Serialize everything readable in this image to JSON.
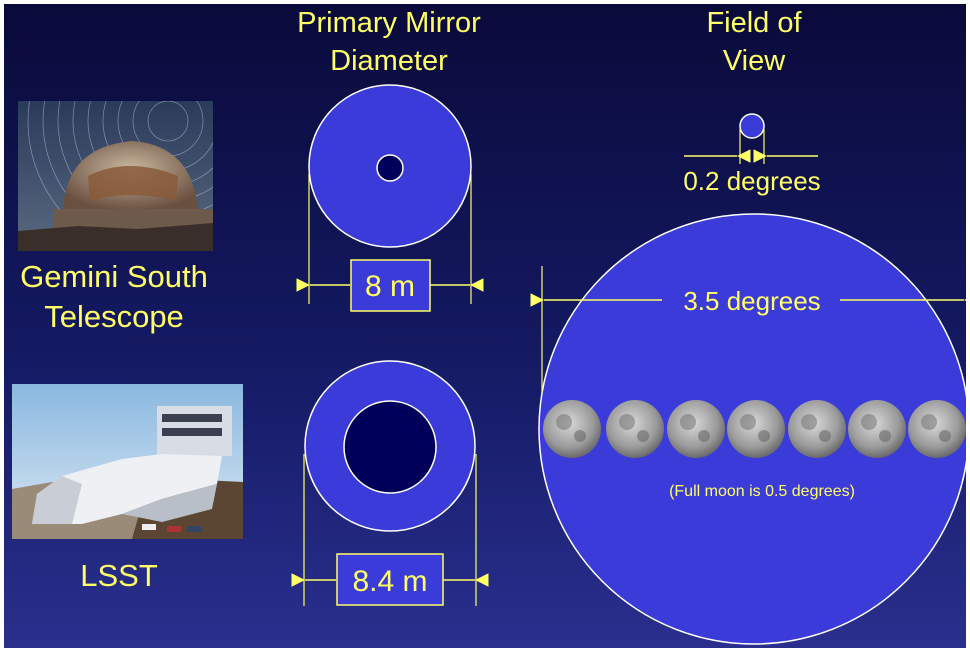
{
  "headings": {
    "mirror_line1": "Primary Mirror",
    "mirror_line2": "Diameter",
    "fov_line1": "Field of",
    "fov_line2": "View"
  },
  "telescopes": {
    "gemini_line1": "Gemini South",
    "gemini_line2": "Telescope",
    "lsst": "LSST"
  },
  "mirror": {
    "gemini_diameter": "8 m",
    "lsst_diameter": "8.4 m"
  },
  "fov": {
    "gemini": "0.2 degrees",
    "lsst": "3.5 degrees",
    "moon_note": "(Full moon is 0.5 degrees)"
  },
  "colors": {
    "text": "#ffff66",
    "disk": "#3b3bd9",
    "hole": "#00005a"
  }
}
